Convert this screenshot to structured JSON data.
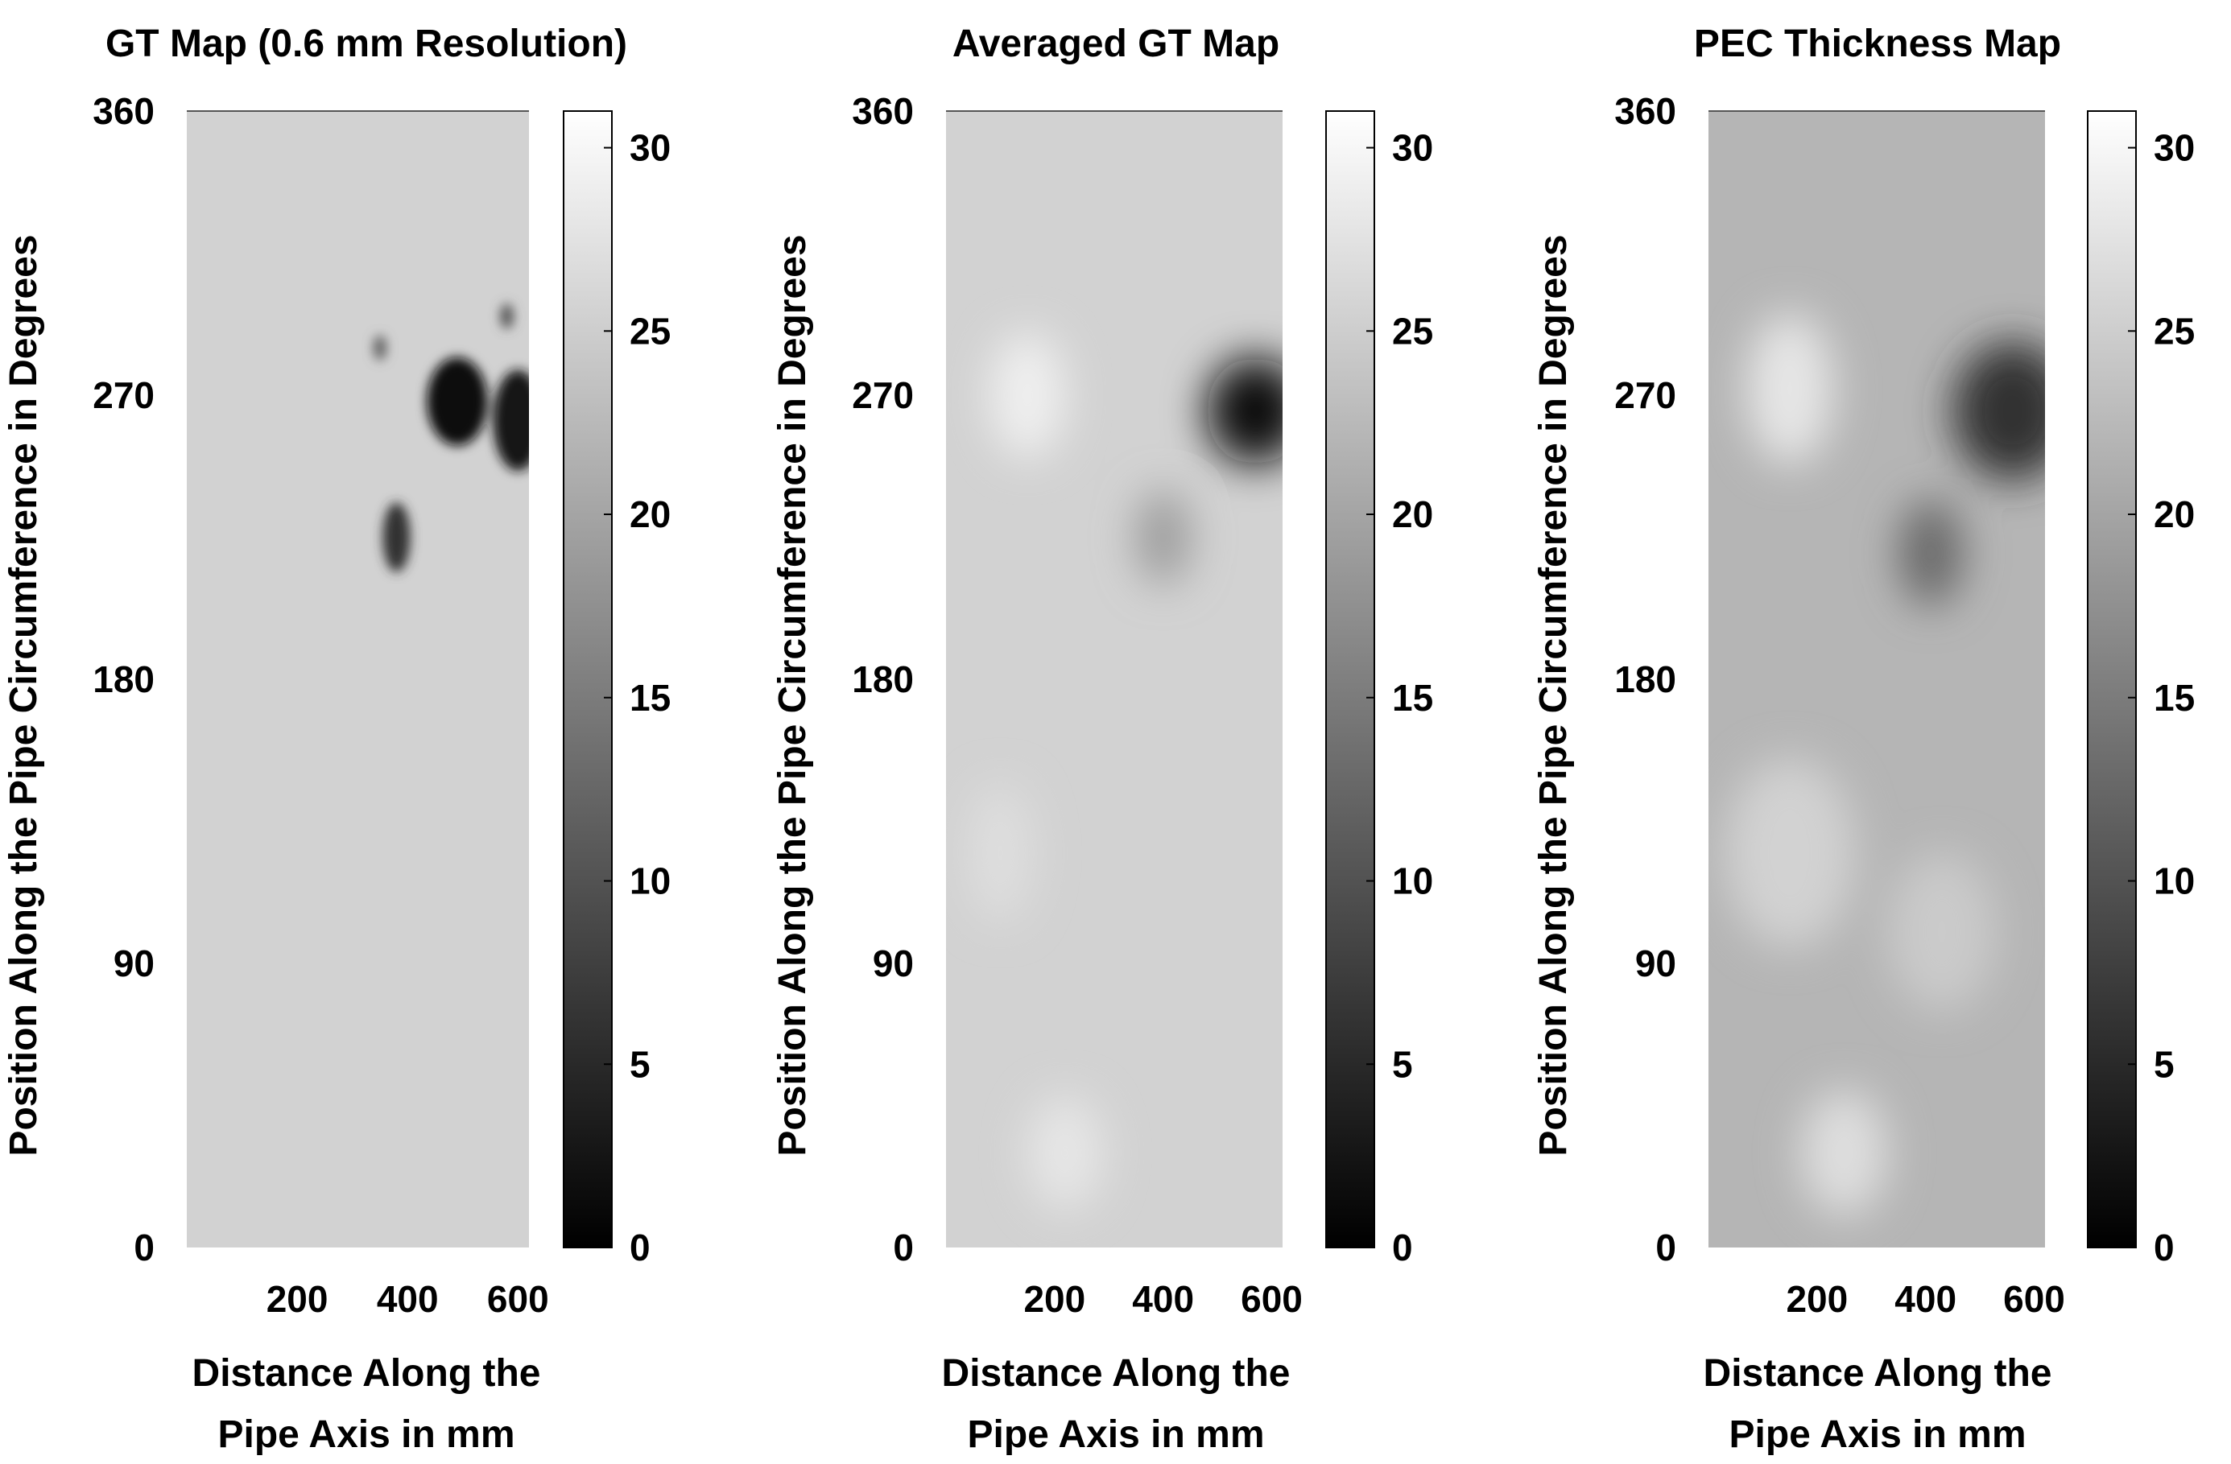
{
  "chart_data": [
    {
      "type": "heatmap",
      "title": "GT Map (0.6 mm Resolution)",
      "xlabel": [
        "Distance Along the",
        "Pipe Axis in mm"
      ],
      "ylabel": "Position Along the Pipe Circumference in Degrees",
      "xlim": [
        0,
        620
      ],
      "ylim": [
        0,
        360
      ],
      "xticks": [
        200,
        400,
        600
      ],
      "yticks": [
        0,
        90,
        180,
        270,
        360
      ],
      "colorbar": {
        "range": [
          0,
          31
        ],
        "ticks": [
          0,
          5,
          10,
          15,
          20,
          25,
          30
        ],
        "colormap": "gray"
      },
      "baseline_value": 25.5,
      "features": [
        {
          "x": 490,
          "y": 268,
          "r_mm": 55,
          "r_deg": 14,
          "value": 2
        },
        {
          "x": 600,
          "y": 262,
          "r_mm": 45,
          "r_deg": 16,
          "value": 3
        },
        {
          "x": 380,
          "y": 225,
          "r_mm": 25,
          "r_deg": 11,
          "value": 6
        },
        {
          "x": 580,
          "y": 295,
          "r_mm": 12,
          "r_deg": 4,
          "value": 10
        },
        {
          "x": 350,
          "y": 285,
          "r_mm": 12,
          "r_deg": 4,
          "value": 12
        }
      ]
    },
    {
      "type": "heatmap",
      "title": "Averaged GT Map",
      "xlabel": [
        "Distance Along the",
        "Pipe Axis in mm"
      ],
      "ylabel": "Position Along the Pipe Circumference in Degrees",
      "xlim": [
        0,
        620
      ],
      "ylim": [
        0,
        360
      ],
      "xticks": [
        200,
        400,
        600
      ],
      "yticks": [
        0,
        90,
        180,
        270,
        360
      ],
      "colorbar": {
        "range": [
          0,
          31
        ],
        "ticks": [
          0,
          5,
          10,
          15,
          20,
          25,
          30
        ],
        "colormap": "gray"
      },
      "baseline_value": 25.5,
      "features": [
        {
          "x": 570,
          "y": 265,
          "r_mm": 90,
          "r_deg": 17,
          "value": 2
        },
        {
          "x": 400,
          "y": 225,
          "r_mm": 50,
          "r_deg": 15,
          "value": 19
        },
        {
          "x": 150,
          "y": 270,
          "r_mm": 70,
          "r_deg": 20,
          "value": 29
        },
        {
          "x": 220,
          "y": 30,
          "r_mm": 70,
          "r_deg": 18,
          "value": 28
        },
        {
          "x": 100,
          "y": 125,
          "r_mm": 60,
          "r_deg": 22,
          "value": 27
        }
      ]
    },
    {
      "type": "heatmap",
      "title": "PEC Thickness Map",
      "xlabel": [
        "Distance Along the",
        "Pipe Axis in mm"
      ],
      "ylabel": "Position Along the Pipe Circumference in Degrees",
      "xlim": [
        0,
        620
      ],
      "ylim": [
        0,
        360
      ],
      "xticks": [
        200,
        400,
        600
      ],
      "yticks": [
        0,
        90,
        180,
        270,
        360
      ],
      "colorbar": {
        "range": [
          0,
          31
        ],
        "ticks": [
          0,
          5,
          10,
          15,
          20,
          25,
          30
        ],
        "colormap": "gray"
      },
      "baseline_value": 22,
      "features": [
        {
          "x": 560,
          "y": 265,
          "r_mm": 110,
          "r_deg": 22,
          "value": 6
        },
        {
          "x": 410,
          "y": 220,
          "r_mm": 60,
          "r_deg": 17,
          "value": 13
        },
        {
          "x": 150,
          "y": 272,
          "r_mm": 80,
          "r_deg": 24,
          "value": 28
        },
        {
          "x": 250,
          "y": 30,
          "r_mm": 80,
          "r_deg": 20,
          "value": 27
        },
        {
          "x": 150,
          "y": 125,
          "r_mm": 120,
          "r_deg": 30,
          "value": 25.5
        },
        {
          "x": 430,
          "y": 100,
          "r_mm": 100,
          "r_deg": 25,
          "value": 24.5
        }
      ]
    }
  ]
}
